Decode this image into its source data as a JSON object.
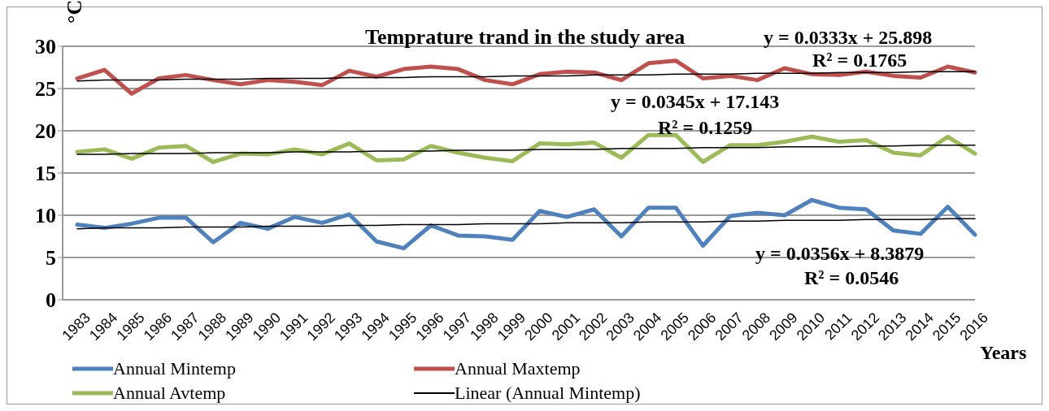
{
  "chart_data": {
    "type": "line",
    "title": "Temprature trand in the study area",
    "ylabel": "°C",
    "xlabel": "Years",
    "categories": [
      "1983",
      "1984",
      "1985",
      "1986",
      "1987",
      "1988",
      "1989",
      "1990",
      "1991",
      "1992",
      "1993",
      "1994",
      "1995",
      "1996",
      "1997",
      "1998",
      "1999",
      "2000",
      "2001",
      "2002",
      "2003",
      "2004",
      "2005",
      "2006",
      "2007",
      "2008",
      "2009",
      "2010",
      "2011",
      "2012",
      "2013",
      "2014",
      "2015",
      "2016"
    ],
    "series": [
      {
        "name": "Annual Mintemp",
        "color": "#4f81bd",
        "values": [
          8.9,
          8.5,
          9.0,
          9.7,
          9.7,
          6.8,
          9.1,
          8.4,
          9.8,
          9.1,
          10.1,
          6.9,
          6.1,
          8.8,
          7.6,
          7.5,
          7.1,
          10.5,
          9.8,
          10.7,
          7.5,
          10.9,
          10.9,
          6.4,
          9.9,
          10.3,
          10.0,
          11.8,
          10.9,
          10.7,
          8.2,
          7.8,
          11.0,
          7.7
        ]
      },
      {
        "name": "Annual Maxtemp",
        "color": "#c0504d",
        "values": [
          26.2,
          27.2,
          24.4,
          26.2,
          26.6,
          26.0,
          25.5,
          26.0,
          25.8,
          25.4,
          27.1,
          26.4,
          27.3,
          27.6,
          27.3,
          26.0,
          25.5,
          26.7,
          27.0,
          26.9,
          26.0,
          28.0,
          28.3,
          26.2,
          26.5,
          26.0,
          27.4,
          26.7,
          26.6,
          27.0,
          26.5,
          26.3,
          27.6,
          26.9
        ]
      },
      {
        "name": "Annual Avtemp",
        "color": "#9bbb59",
        "values": [
          17.5,
          17.8,
          16.7,
          18.0,
          18.2,
          16.3,
          17.3,
          17.2,
          17.8,
          17.2,
          18.5,
          16.5,
          16.6,
          18.2,
          17.4,
          16.8,
          16.4,
          18.5,
          18.4,
          18.6,
          16.8,
          19.5,
          19.5,
          16.3,
          18.3,
          18.3,
          18.7,
          19.3,
          18.7,
          18.9,
          17.4,
          17.1,
          19.3,
          17.3
        ]
      },
      {
        "name": "Linear (Annual Mintemp)",
        "type": "line",
        "color": "#000000",
        "values": [
          8.4,
          8.5,
          8.5,
          8.5,
          8.6,
          8.6,
          8.6,
          8.7,
          8.7,
          8.7,
          8.8,
          8.8,
          8.9,
          8.9,
          8.9,
          9.0,
          9.0,
          9.0,
          9.1,
          9.1,
          9.1,
          9.2,
          9.2,
          9.2,
          9.3,
          9.3,
          9.4,
          9.4,
          9.4,
          9.5,
          9.5,
          9.5,
          9.6,
          9.6
        ]
      },
      {
        "type": "line",
        "color": "#000000",
        "values": [
          25.9,
          26.0,
          26.0,
          26.0,
          26.1,
          26.1,
          26.1,
          26.2,
          26.2,
          26.2,
          26.3,
          26.3,
          26.3,
          26.4,
          26.4,
          26.4,
          26.5,
          26.5,
          26.5,
          26.6,
          26.6,
          26.6,
          26.7,
          26.7,
          26.7,
          26.8,
          26.8,
          26.8,
          26.9,
          26.9,
          26.9,
          27.0,
          27.0,
          27.0
        ]
      },
      {
        "type": "line",
        "color": "#000000",
        "values": [
          17.2,
          17.2,
          17.3,
          17.3,
          17.3,
          17.4,
          17.4,
          17.4,
          17.5,
          17.5,
          17.5,
          17.6,
          17.6,
          17.6,
          17.7,
          17.7,
          17.7,
          17.8,
          17.8,
          17.8,
          17.9,
          17.9,
          17.9,
          18.0,
          18.0,
          18.0,
          18.1,
          18.1,
          18.1,
          18.2,
          18.2,
          18.3,
          18.3,
          18.3
        ]
      }
    ],
    "annotations": [
      "y = 0.0333x + 25.898",
      "R² = 0.1765",
      "y = 0.0345x + 17.143",
      "R² = 0.1259",
      "y = 0.0356x + 8.3879",
      "R² = 0.0546"
    ],
    "ylim": [
      0,
      30
    ],
    "yticks": [
      0,
      5,
      10,
      15,
      20,
      25,
      30
    ],
    "grid": "y",
    "legend": "bottom",
    "marker": "none",
    "line_style": "solid"
  }
}
